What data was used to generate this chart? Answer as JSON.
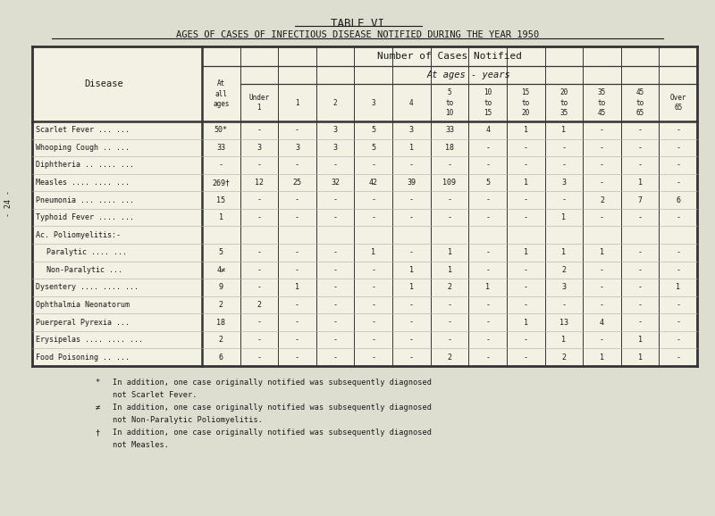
{
  "title": "TABLE VI",
  "subtitle": "AGES OF CASES OF INFECTIOUS DISEASE NOTIFIED DURING THE YEAR 1950",
  "header1": "Number of Cases Notified",
  "header2": "At ages - years",
  "col_headers": [
    "At\nall\nages",
    "Under\n1",
    "1",
    "2",
    "3",
    "4",
    "5\nto\n10",
    "10\nto\n15",
    "15\nto\n20",
    "20\nto\n35",
    "35\nto\n45",
    "45\nto\n65",
    "Over\n65"
  ],
  "disease_col": "Disease",
  "diseases": [
    "Scarlet Fever ... ...",
    "Whooping Cough .. ...",
    "Diphtheria .. .... ...",
    "Measles .... .... ...",
    "Pneumonia ... .... ...",
    "Typhoid Fever .... ...",
    "Ac. Poliomyelitis:-",
    "    Paralytic .... ...",
    "    Non-Paralytic ...",
    "Dysentery .... .... ...",
    "Ophthalmia Neonatorum",
    "Puerperal Pyrexia ...",
    "Erysipelas .... .... ...",
    "Food Poisoning .. ..."
  ],
  "data": [
    [
      "50*",
      "-",
      "-",
      "3",
      "5",
      "3",
      "33",
      "4",
      "1",
      "1",
      "-",
      "-",
      "-"
    ],
    [
      "33",
      "3",
      "3",
      "3",
      "5",
      "1",
      "18",
      "-",
      "-",
      "-",
      "-",
      "-",
      "-"
    ],
    [
      "-",
      "-",
      "-",
      "-",
      "-",
      "-",
      "-",
      "-",
      "-",
      "-",
      "-",
      "-",
      "-"
    ],
    [
      "269†",
      "12",
      "25",
      "32",
      "42",
      "39",
      "109",
      "5",
      "1",
      "3",
      "-",
      "1",
      "-"
    ],
    [
      "15",
      "-",
      "-",
      "-",
      "-",
      "-",
      "-",
      "-",
      "-",
      "-",
      "2",
      "7",
      "6"
    ],
    [
      "1",
      "-",
      "-",
      "-",
      "-",
      "-",
      "-",
      "-",
      "-",
      "1",
      "-",
      "-",
      "-"
    ],
    [
      "",
      "",
      "",
      "",
      "",
      "",
      "",
      "",
      "",
      "",
      "",
      "",
      ""
    ],
    [
      "5",
      "-",
      "-",
      "-",
      "1",
      "-",
      "1",
      "-",
      "1",
      "1",
      "1",
      "-",
      "-"
    ],
    [
      "4≠",
      "-",
      "-",
      "-",
      "-",
      "1",
      "1",
      "-",
      "-",
      "2",
      "-",
      "-",
      "-"
    ],
    [
      "9",
      "-",
      "1",
      "-",
      "-",
      "1",
      "2",
      "1",
      "-",
      "3",
      "-",
      "-",
      "1"
    ],
    [
      "2",
      "2",
      "-",
      "-",
      "-",
      "-",
      "-",
      "-",
      "-",
      "-",
      "-",
      "-",
      "-"
    ],
    [
      "18",
      "-",
      "-",
      "-",
      "-",
      "-",
      "-",
      "-",
      "1",
      "13",
      "4",
      "-",
      "-"
    ],
    [
      "2",
      "-",
      "-",
      "-",
      "-",
      "-",
      "-",
      "-",
      "-",
      "1",
      "-",
      "1",
      "-"
    ],
    [
      "6",
      "-",
      "-",
      "-",
      "-",
      "-",
      "2",
      "-",
      "-",
      "2",
      "1",
      "1",
      "-"
    ]
  ],
  "footnotes": [
    [
      "*",
      "In addition, one case originally notified was subsequently diagnosed"
    ],
    [
      "",
      "not Scarlet Fever."
    ],
    [
      "≠",
      "In addition, one case originally notified was subsequently diagnosed"
    ],
    [
      "",
      "not Non-Paralytic Poliomyelitis."
    ],
    [
      "†",
      "In addition, one case originally notified was subsequently diagnosed"
    ],
    [
      "",
      "not Measles."
    ]
  ],
  "bg_color": "#ddddd0",
  "table_bg": "#f2f1e4",
  "text_color": "#1a1a1a"
}
